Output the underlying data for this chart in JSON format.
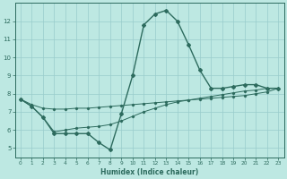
{
  "title": "",
  "xlabel": "Humidex (Indice chaleur)",
  "background_color": "#bde8e2",
  "grid_color": "#99cccc",
  "line_color": "#2d6b5e",
  "xlim": [
    -0.5,
    23.5
  ],
  "ylim": [
    4.5,
    13.0
  ],
  "yticks": [
    5,
    6,
    7,
    8,
    9,
    10,
    11,
    12
  ],
  "xticks": [
    0,
    1,
    2,
    3,
    4,
    5,
    6,
    7,
    8,
    9,
    10,
    11,
    12,
    13,
    14,
    15,
    16,
    17,
    18,
    19,
    20,
    21,
    22,
    23
  ],
  "series1_x": [
    0,
    1,
    2,
    3,
    4,
    5,
    6,
    7,
    8,
    9,
    10,
    11,
    12,
    13,
    14,
    15,
    16,
    17,
    18,
    19,
    20,
    21,
    22,
    23
  ],
  "series1_y": [
    7.7,
    7.3,
    6.7,
    5.8,
    5.8,
    5.8,
    5.8,
    5.3,
    4.9,
    6.9,
    9.0,
    11.8,
    12.4,
    12.6,
    12.0,
    10.7,
    9.3,
    8.3,
    8.3,
    8.4,
    8.5,
    8.5,
    8.3,
    8.3
  ],
  "series2_x": [
    0,
    1,
    2,
    3,
    4,
    5,
    6,
    7,
    8,
    9,
    10,
    11,
    12,
    13,
    14,
    15,
    16,
    17,
    18,
    19,
    20,
    21,
    22,
    23
  ],
  "series2_y": [
    7.7,
    7.4,
    7.2,
    7.15,
    7.15,
    7.2,
    7.2,
    7.25,
    7.3,
    7.35,
    7.4,
    7.45,
    7.5,
    7.55,
    7.6,
    7.65,
    7.7,
    7.75,
    7.8,
    7.85,
    7.9,
    8.0,
    8.1,
    8.3
  ],
  "series3_x": [
    0,
    1,
    2,
    3,
    4,
    5,
    6,
    7,
    8,
    9,
    10,
    11,
    12,
    13,
    14,
    15,
    16,
    17,
    18,
    19,
    20,
    21,
    22,
    23
  ],
  "series3_y": [
    7.7,
    7.3,
    6.7,
    5.9,
    6.0,
    6.1,
    6.15,
    6.2,
    6.3,
    6.5,
    6.75,
    7.0,
    7.2,
    7.4,
    7.55,
    7.65,
    7.75,
    7.85,
    7.95,
    8.05,
    8.15,
    8.2,
    8.3,
    8.3
  ]
}
